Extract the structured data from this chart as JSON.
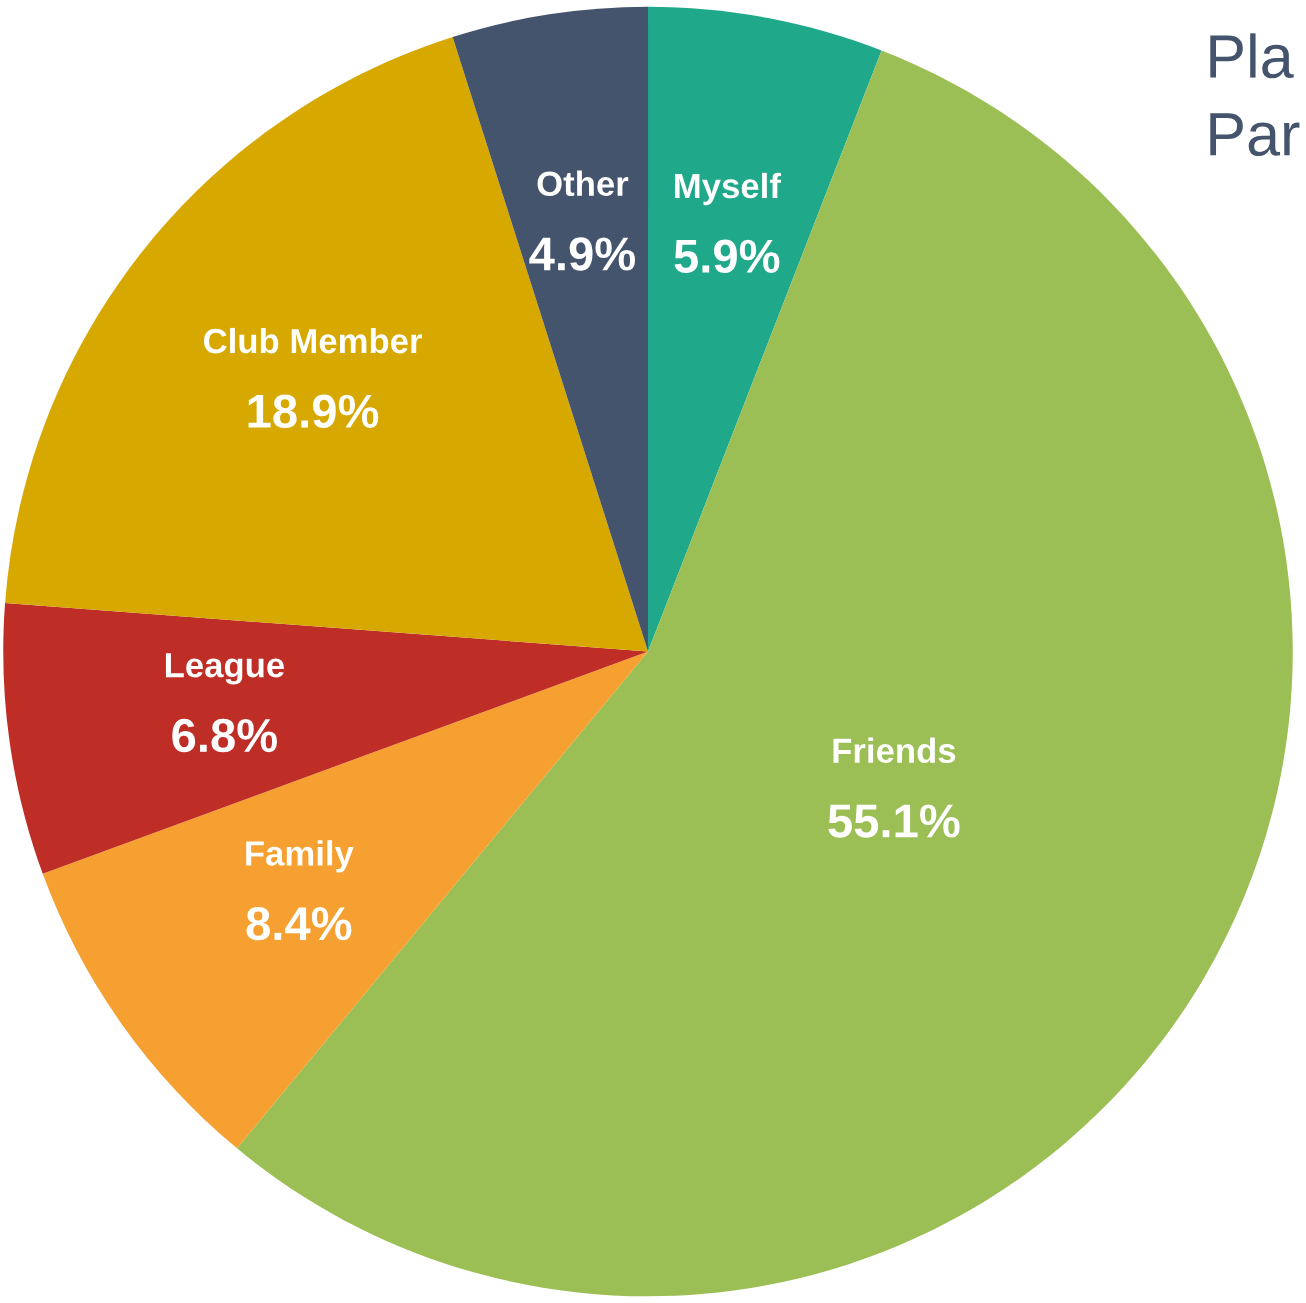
{
  "chart_data": {
    "type": "pie",
    "categories": [
      "Myself",
      "Friends",
      "Family",
      "League",
      "Club Member",
      "Other"
    ],
    "values": [
      5.9,
      55.1,
      8.4,
      6.8,
      18.9,
      4.9
    ],
    "value_labels": [
      "5.9%",
      "55.1%",
      "8.4%",
      "6.8%",
      "18.9%",
      "4.9%"
    ],
    "colors": [
      "#1fa88a",
      "#9bbf55",
      "#f5a030",
      "#be2e26",
      "#d6a800",
      "#44546c"
    ],
    "annotations": [
      "Pla",
      "Par"
    ],
    "legend": false
  }
}
